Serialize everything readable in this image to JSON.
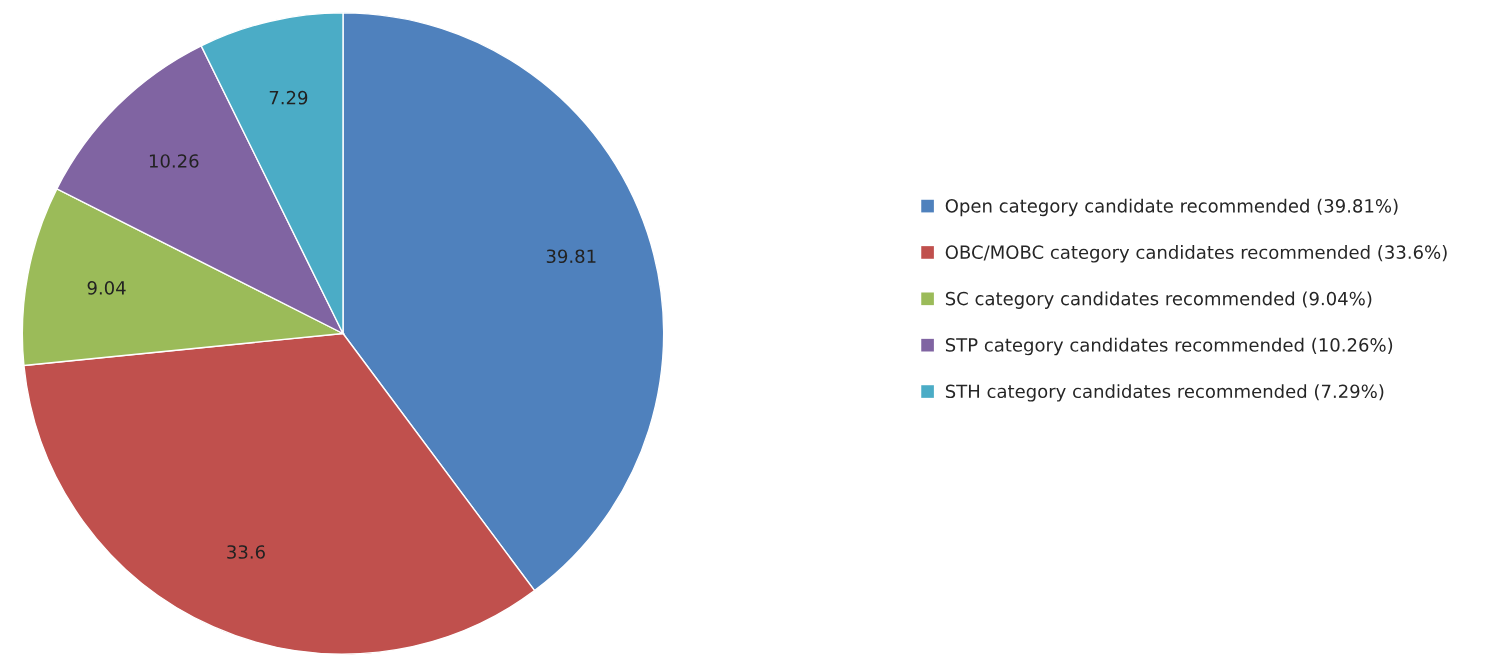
{
  "chart_data": {
    "type": "pie",
    "categories": [
      "Open category candidate recommended (39.81%)",
      "OBC/MOBC category candidates recommended (33.6%)",
      "SC category candidates recommended (9.04%)",
      "STP category candidates recommended (10.26%)",
      "STH category candidates recommended (7.29%)"
    ],
    "values": [
      39.81,
      33.6,
      9.04,
      10.26,
      7.29
    ],
    "colors": [
      "#4f81bd",
      "#c0504d",
      "#9bbb59",
      "#8064a2",
      "#4bacc6"
    ],
    "data_labels": true,
    "legend": "right"
  }
}
